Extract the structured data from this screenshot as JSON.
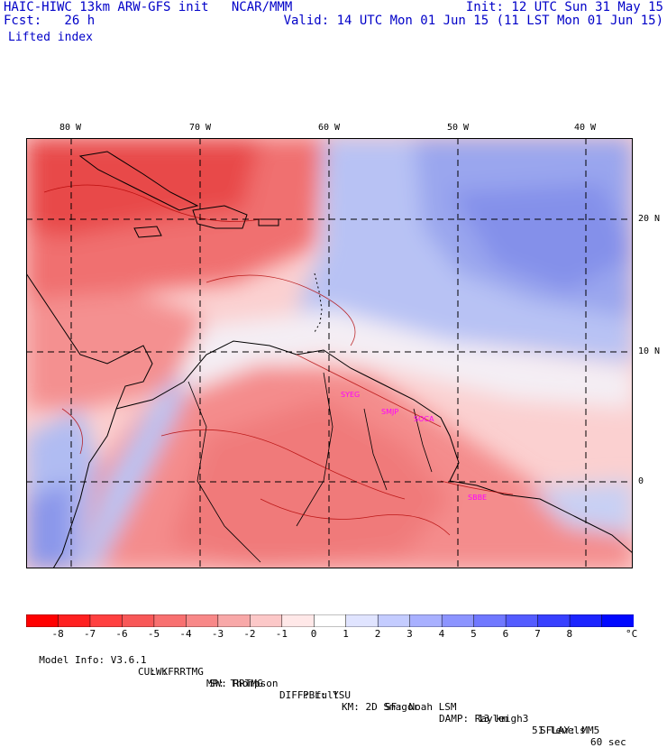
{
  "header": {
    "model_line": "HAIC-HIWC 13km ARW-GFS init   NCAR/MMM",
    "fcst_line": "Fcst:   26 h",
    "init_line": "Init: 12 UTC Sun 31 May 15",
    "valid_line": "Valid: 14 UTC Mon 01 Jun 15 (11 LST Mon 01 Jun 15)",
    "field_name": "Lifted index"
  },
  "map": {
    "lon_labels": [
      "80 W",
      "70 W",
      "60 W",
      "50 W",
      "40 W"
    ],
    "lat_labels": [
      "20 N",
      "10 N",
      "0"
    ],
    "stations": [
      "SYEG",
      "SMJP",
      "SOCA",
      "SBBE"
    ],
    "colors": {
      "land": "#000000",
      "contour": "#b00000",
      "station": "#ff00ff",
      "negative_strong": "#e83a3a",
      "neutral": "#ffffff",
      "positive_strong": "#4a55e0"
    }
  },
  "colorbar": {
    "unit": "°C",
    "labels": [
      "-8",
      "-7",
      "-6",
      "-5",
      "-4",
      "-3",
      "-2",
      "-1",
      "0",
      "1",
      "2",
      "3",
      "4",
      "5",
      "6",
      "7",
      "8"
    ],
    "colors": [
      "#ff0000",
      "#ff2020",
      "#ff4040",
      "#f85858",
      "#f87070",
      "#f88888",
      "#f8a8a8",
      "#fcc8c8",
      "#ffe8e8",
      "#ffffff",
      "#e0e4ff",
      "#c4ccff",
      "#a8b0ff",
      "#8c94ff",
      "#7078ff",
      "#545cff",
      "#3840ff",
      "#1c24ff",
      "#0008ff"
    ]
  },
  "footer": {
    "line1": [
      "Model Info: V3.6.1",
      "CU: KF",
      "MP: Thompson",
      "PBL: YSU",
      "SF: Noah LSM",
      "13 km",
      "51 levels",
      "60 sec"
    ],
    "line2": [
      "LW: RRTMG",
      "SW: RRTMG",
      "DIFF: full",
      "KM: 2D Smagor",
      "DAMP: Rayleigh3",
      "SFLAY: MM5"
    ]
  }
}
